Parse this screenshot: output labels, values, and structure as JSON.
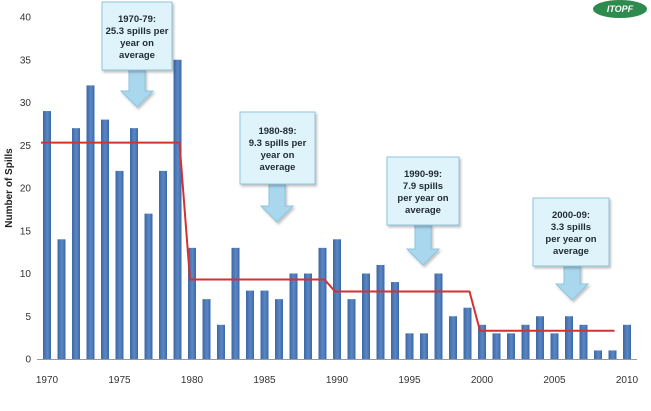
{
  "chart_data": {
    "type": "bar",
    "title": "",
    "xlabel": "",
    "ylabel": "Number of Spills",
    "ylim": [
      0,
      40
    ],
    "y_ticks": [
      "0",
      "5",
      "10",
      "15",
      "20",
      "25",
      "30",
      "35",
      "40"
    ],
    "x_ticks": [
      "1970",
      "1975",
      "1980",
      "1985",
      "1990",
      "1995",
      "2000",
      "2005",
      "2010"
    ],
    "x": [
      1970,
      1971,
      1972,
      1973,
      1974,
      1975,
      1976,
      1977,
      1978,
      1979,
      1980,
      1981,
      1982,
      1983,
      1984,
      1985,
      1986,
      1987,
      1988,
      1989,
      1990,
      1991,
      1992,
      1993,
      1994,
      1995,
      1996,
      1997,
      1998,
      1999,
      2000,
      2001,
      2002,
      2003,
      2004,
      2005,
      2006,
      2007,
      2008,
      2009,
      2010
    ],
    "values": [
      29,
      14,
      27,
      32,
      28,
      22,
      27,
      17,
      22,
      35,
      13,
      7,
      4,
      13,
      8,
      8,
      7,
      10,
      10,
      13,
      14,
      7,
      10,
      11,
      9,
      3,
      3,
      10,
      5,
      6,
      4,
      3,
      3,
      4,
      5,
      3,
      5,
      4,
      1,
      1,
      4
    ],
    "grid": false,
    "legend": "none",
    "decade_averages": [
      {
        "start": 1970,
        "end": 1979,
        "value": 25.3
      },
      {
        "start": 1980,
        "end": 1989,
        "value": 9.3
      },
      {
        "start": 1990,
        "end": 1999,
        "value": 7.9
      },
      {
        "start": 2000,
        "end": 2009,
        "value": 3.3
      }
    ],
    "annotations": [
      {
        "lines": [
          "1970-79:",
          "25.3 spills per",
          "year on",
          "average"
        ]
      },
      {
        "lines": [
          "1980-89:",
          "9.3 spills per",
          "year on",
          "average"
        ]
      },
      {
        "lines": [
          "1990-99:",
          "7.9 spills",
          "per year on",
          "average"
        ]
      },
      {
        "lines": [
          "2000-09:",
          "3.3 spills",
          "per year on",
          "average"
        ]
      }
    ],
    "colors": {
      "bar": "#5b87c5",
      "bar_dark": "#3c68a6",
      "average_line": "#d23232",
      "callout_fill": "#dff3fa",
      "callout_stroke": "#8fc4dd",
      "arrow": "#a9d7ee"
    }
  },
  "logo": {
    "text": "ITOPF",
    "color": "#2e8b4e"
  }
}
